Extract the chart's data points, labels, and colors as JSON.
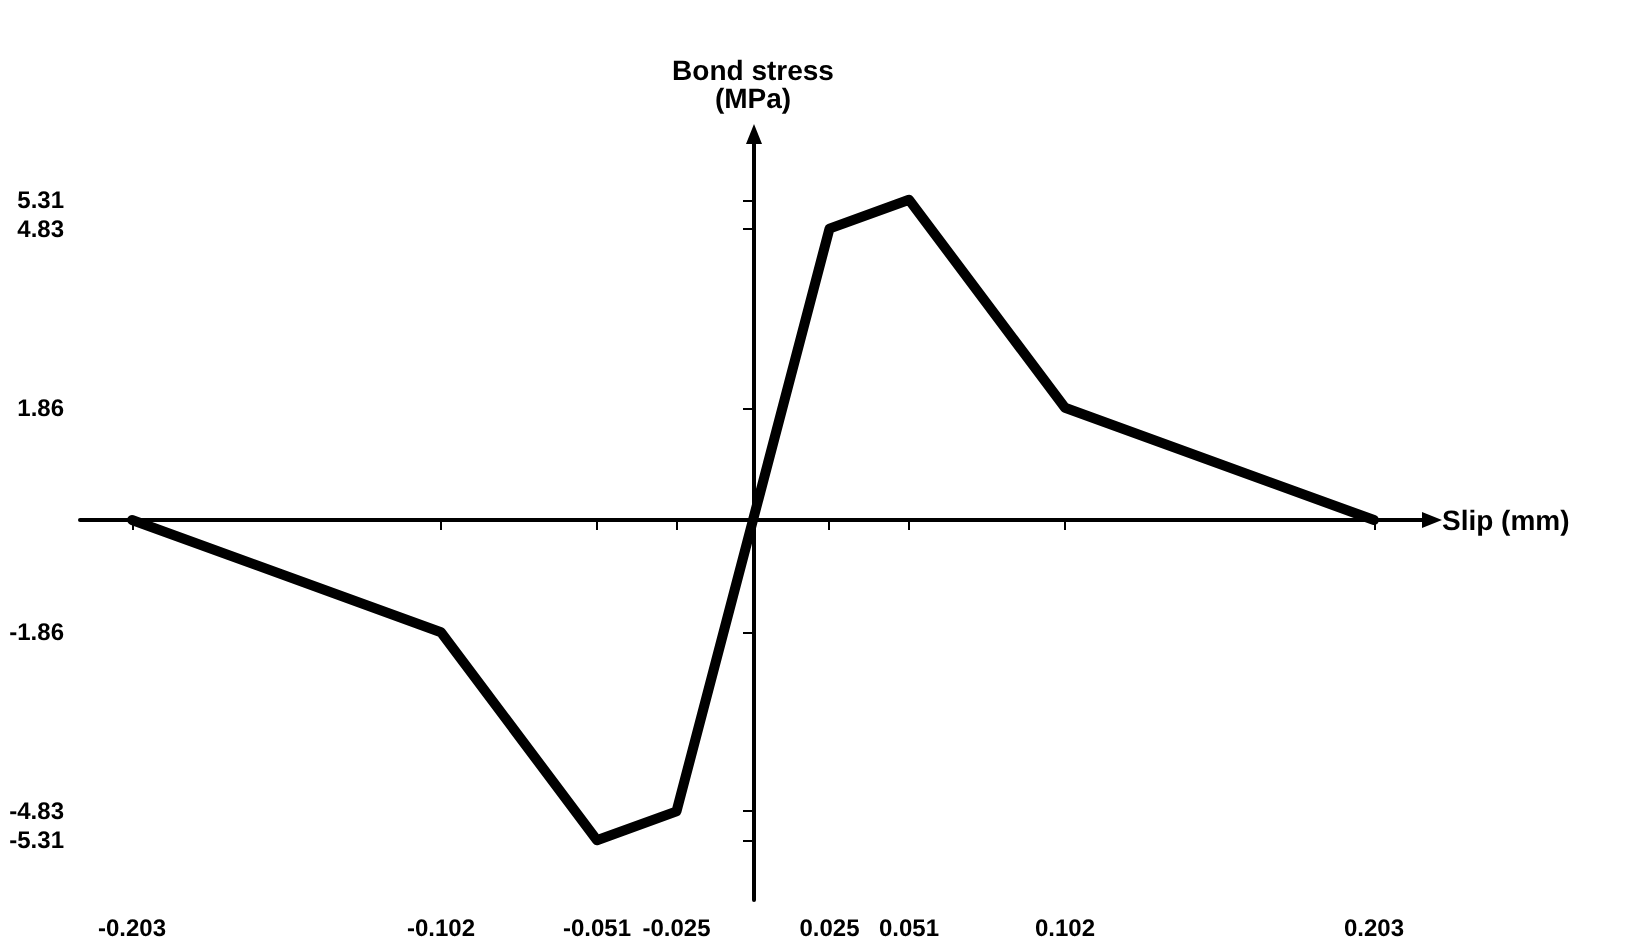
{
  "chart_data": {
    "type": "line",
    "xlabel": "Slip (mm)",
    "ylabel": "Bond stress\n(MPa)",
    "x": [
      -0.203,
      -0.102,
      -0.051,
      -0.025,
      0,
      0.025,
      0.051,
      0.102,
      0.203
    ],
    "series": [
      {
        "color": "#000000",
        "values": [
          0,
          -1.86,
          -5.31,
          -4.83,
          0,
          4.83,
          5.31,
          1.86,
          0
        ]
      }
    ],
    "xlim": [
      -0.22,
      0.22
    ],
    "ylim": [
      -6.3,
      6.3
    ],
    "xticks": [
      -0.203,
      -0.102,
      -0.051,
      -0.025,
      0.025,
      0.051,
      0.102,
      0.203
    ],
    "yticks": [
      -5.31,
      -4.83,
      -1.86,
      1.86,
      4.83,
      5.31
    ],
    "grid": false,
    "marker": "none",
    "line_style": "solid"
  }
}
